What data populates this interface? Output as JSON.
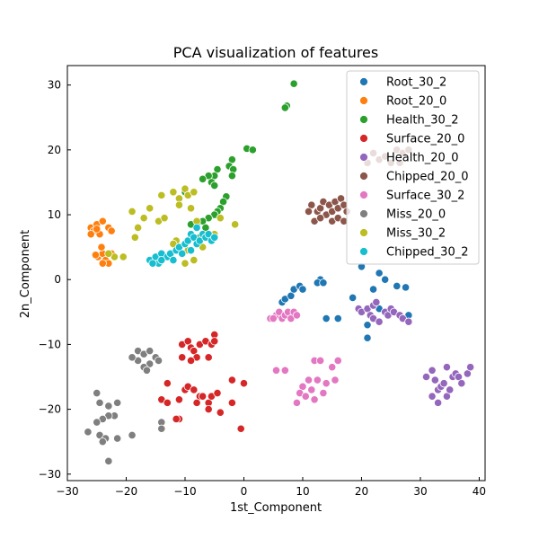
{
  "chart_data": {
    "type": "scatter",
    "title": "PCA visualization of features",
    "xlabel": "1st_Component",
    "ylabel": "2n_Component",
    "xlim": [
      -30,
      41
    ],
    "ylim": [
      -31,
      33
    ],
    "xticks": [
      -30,
      -20,
      -10,
      0,
      10,
      20,
      30,
      40
    ],
    "yticks": [
      -30,
      -20,
      -10,
      0,
      10,
      20,
      30
    ],
    "xtick_labels": [
      "−30",
      "−20",
      "−10",
      "0",
      "10",
      "20",
      "30",
      "40"
    ],
    "ytick_labels": [
      "−30",
      "−20",
      "−10",
      "0",
      "10",
      "20",
      "30"
    ],
    "grid": false,
    "legend": "top-right",
    "series": [
      {
        "name": "Root_30_2",
        "color": "#1f77b4",
        "points": [
          [
            6.5,
            -3.5
          ],
          [
            7,
            -3
          ],
          [
            8,
            -2.5
          ],
          [
            8.5,
            -1.5
          ],
          [
            9.5,
            -1
          ],
          [
            10,
            -1.5
          ],
          [
            13,
            0
          ],
          [
            12.5,
            -0.5
          ],
          [
            13.5,
            -0.5
          ],
          [
            14,
            -6
          ],
          [
            16,
            -6
          ],
          [
            18.5,
            -2.8
          ],
          [
            20,
            2
          ],
          [
            21,
            -7
          ],
          [
            21,
            -9
          ],
          [
            22,
            -1.5
          ],
          [
            23,
            1
          ],
          [
            24,
            0
          ],
          [
            26,
            -1
          ],
          [
            27.5,
            -1.2
          ],
          [
            28,
            -5.5
          ],
          [
            23,
            -4.5
          ]
        ]
      },
      {
        "name": "Root_20_0",
        "color": "#ff7f0e",
        "points": [
          [
            -26,
            8
          ],
          [
            -25.5,
            7.5
          ],
          [
            -25,
            8.5
          ],
          [
            -24.5,
            7
          ],
          [
            -24,
            9
          ],
          [
            -23,
            8
          ],
          [
            -22.5,
            7.5
          ],
          [
            -26,
            7
          ],
          [
            -25,
            7.8
          ],
          [
            -24.8,
            3.5
          ],
          [
            -24,
            4
          ],
          [
            -23.5,
            3
          ],
          [
            -24.2,
            5
          ],
          [
            -25.2,
            3.8
          ],
          [
            -23,
            2.5
          ],
          [
            -24,
            2.5
          ],
          [
            -22.5,
            4
          ]
        ]
      },
      {
        "name": "Health_30_2",
        "color": "#2ca02c",
        "points": [
          [
            8.5,
            30.2
          ],
          [
            7.3,
            26.8
          ],
          [
            7,
            26.5
          ],
          [
            0.5,
            20.2
          ],
          [
            1.5,
            20
          ],
          [
            -2,
            18.5
          ],
          [
            -2.5,
            17.5
          ],
          [
            -1.8,
            17
          ],
          [
            -2,
            16
          ],
          [
            -4.5,
            17
          ],
          [
            -5,
            16
          ],
          [
            -6,
            16
          ],
          [
            -7,
            15.5
          ],
          [
            -5.5,
            15
          ],
          [
            -5,
            14.5
          ],
          [
            -3,
            12.8
          ],
          [
            -3.5,
            12
          ],
          [
            -4,
            11
          ],
          [
            -4.5,
            10.5
          ],
          [
            -5,
            10
          ],
          [
            -6,
            9.5
          ],
          [
            -7,
            9
          ],
          [
            -8,
            8.5
          ],
          [
            -9,
            8.5
          ],
          [
            -6.5,
            8
          ],
          [
            -7.5,
            6.5
          ],
          [
            -9,
            7
          ],
          [
            -10,
            13.5
          ]
        ]
      },
      {
        "name": "Surface_20_0",
        "color": "#d62728",
        "points": [
          [
            -10.5,
            -10
          ],
          [
            -9.5,
            -9.5
          ],
          [
            -9,
            -10.5
          ],
          [
            -8.5,
            -11
          ],
          [
            -7.5,
            -10
          ],
          [
            -6.5,
            -9.5
          ],
          [
            -5.5,
            -10
          ],
          [
            -5,
            -8.5
          ],
          [
            -5,
            -9.5
          ],
          [
            -8,
            -12
          ],
          [
            -9,
            -12.5
          ],
          [
            -10.5,
            -12
          ],
          [
            -6,
            -12
          ],
          [
            -13,
            -16
          ],
          [
            -14,
            -18.5
          ],
          [
            -13,
            -19
          ],
          [
            -11,
            -18.5
          ],
          [
            -10,
            -17
          ],
          [
            -9.5,
            -16.5
          ],
          [
            -8.5,
            -17
          ],
          [
            -7.5,
            -18
          ],
          [
            -8,
            -19
          ],
          [
            -7,
            -18
          ],
          [
            -6,
            -19
          ],
          [
            -5.5,
            -18
          ],
          [
            -4.5,
            -17.5
          ],
          [
            -2,
            -15.5
          ],
          [
            -2,
            -19
          ],
          [
            -4,
            -20.5
          ],
          [
            -6,
            -20
          ],
          [
            0,
            -16
          ],
          [
            -0.5,
            -23
          ],
          [
            -11,
            -21.5
          ],
          [
            -11.5,
            -21.5
          ]
        ]
      },
      {
        "name": "Health_20_0",
        "color": "#9467bd",
        "points": [
          [
            19.5,
            -4.5
          ],
          [
            20,
            -5
          ],
          [
            21,
            -4.5
          ],
          [
            21.5,
            -5.5
          ],
          [
            22,
            -4
          ],
          [
            22.5,
            -3.5
          ],
          [
            22,
            -6
          ],
          [
            23,
            -6.5
          ],
          [
            24,
            -5
          ],
          [
            24.5,
            -5.5
          ],
          [
            25,
            -4.5
          ],
          [
            25.5,
            -5
          ],
          [
            26.5,
            -5.5
          ],
          [
            27,
            -6
          ],
          [
            28,
            -6.5
          ],
          [
            31,
            -15
          ],
          [
            32,
            -14
          ],
          [
            32.5,
            -15.5
          ],
          [
            33,
            -17
          ],
          [
            33.5,
            -16.5
          ],
          [
            34,
            -16
          ],
          [
            34.5,
            -18
          ],
          [
            35,
            -17
          ],
          [
            35.5,
            -15
          ],
          [
            36,
            -14.5
          ],
          [
            36.5,
            -15
          ],
          [
            37,
            -16
          ],
          [
            38,
            -14.5
          ],
          [
            38.5,
            -13.5
          ],
          [
            32,
            -18
          ],
          [
            33,
            -19
          ],
          [
            34.5,
            -13.5
          ]
        ]
      },
      {
        "name": "Chipped_20_0",
        "color": "#8c564b",
        "points": [
          [
            11.5,
            11.5
          ],
          [
            12.5,
            10.5
          ],
          [
            13,
            11
          ],
          [
            13.5,
            12
          ],
          [
            14,
            10
          ],
          [
            14.5,
            11.5
          ],
          [
            15,
            10.5
          ],
          [
            15.5,
            12
          ],
          [
            16,
            11
          ],
          [
            16.5,
            12.5
          ],
          [
            17,
            11.5
          ],
          [
            17.5,
            10.5
          ],
          [
            12,
            9
          ],
          [
            13,
            9.5
          ],
          [
            15,
            9
          ],
          [
            16,
            9.5
          ],
          [
            17,
            9
          ],
          [
            21,
            18
          ],
          [
            22,
            19.5
          ],
          [
            23,
            18.5
          ],
          [
            24,
            19
          ],
          [
            25,
            18
          ],
          [
            26,
            20
          ],
          [
            27,
            19.5
          ],
          [
            28,
            20
          ],
          [
            26.5,
            18
          ],
          [
            11,
            10.5
          ]
        ]
      },
      {
        "name": "Surface_30_2",
        "color": "#e377c2",
        "points": [
          [
            4.5,
            -6
          ],
          [
            5.5,
            -5.5
          ],
          [
            6,
            -5
          ],
          [
            6.5,
            -6
          ],
          [
            7,
            -5.5
          ],
          [
            7.5,
            -5
          ],
          [
            8,
            -6
          ],
          [
            8.5,
            -5
          ],
          [
            9,
            -5.5
          ],
          [
            5,
            -6
          ],
          [
            5.5,
            -14
          ],
          [
            7,
            -14
          ],
          [
            12,
            -12.5
          ],
          [
            13,
            -12.5
          ],
          [
            15,
            -13.5
          ],
          [
            16,
            -12.5
          ],
          [
            11,
            -15.5
          ],
          [
            12.5,
            -15.5
          ],
          [
            14,
            -16
          ],
          [
            15.5,
            -15.5
          ],
          [
            10,
            -16.5
          ],
          [
            11.5,
            -17
          ],
          [
            13.5,
            -17.5
          ],
          [
            9.5,
            -17.5
          ],
          [
            10.5,
            -18
          ],
          [
            12,
            -18.5
          ],
          [
            9,
            -19
          ]
        ]
      },
      {
        "name": "Miss_20_0",
        "color": "#7f7f7f",
        "points": [
          [
            -18,
            -11
          ],
          [
            -17,
            -11.5
          ],
          [
            -16,
            -11
          ],
          [
            -15,
            -12
          ],
          [
            -16,
            -13
          ],
          [
            -17,
            -13.5
          ],
          [
            -18,
            -12.5
          ],
          [
            -19,
            -12
          ],
          [
            -16.5,
            -14
          ],
          [
            -14.5,
            -12.5
          ],
          [
            -25,
            -17.5
          ],
          [
            -24.5,
            -19
          ],
          [
            -23,
            -19.5
          ],
          [
            -22,
            -21
          ],
          [
            -23,
            -21
          ],
          [
            -24,
            -21.5
          ],
          [
            -21.5,
            -19
          ],
          [
            -25,
            -22
          ],
          [
            -26.5,
            -23.5
          ],
          [
            -24.5,
            -24
          ],
          [
            -23.5,
            -24.5
          ],
          [
            -21.5,
            -24.5
          ],
          [
            -24,
            -25
          ],
          [
            -19,
            -24
          ],
          [
            -14,
            -22
          ],
          [
            -14,
            -23
          ],
          [
            -23,
            -28
          ]
        ]
      },
      {
        "name": "Miss_30_2",
        "color": "#bcbd22",
        "points": [
          [
            -19,
            10.5
          ],
          [
            -18,
            8
          ],
          [
            -17,
            9.5
          ],
          [
            -18.5,
            6.5
          ],
          [
            -16,
            11
          ],
          [
            -14.5,
            9
          ],
          [
            -14,
            13
          ],
          [
            -13.5,
            9.5
          ],
          [
            -12,
            13.5
          ],
          [
            -11,
            12.5
          ],
          [
            -10,
            14
          ],
          [
            -9.5,
            13
          ],
          [
            -8.5,
            13.5
          ],
          [
            -11,
            11.5
          ],
          [
            -11.5,
            6
          ],
          [
            -12,
            5.5
          ],
          [
            -9.5,
            4.5
          ],
          [
            -10,
            2.5
          ],
          [
            -8.5,
            3
          ],
          [
            -7,
            5
          ],
          [
            -4,
            9.5
          ],
          [
            -1.5,
            8.5
          ],
          [
            -5,
            7
          ],
          [
            -20.5,
            3.5
          ],
          [
            -22,
            3.5
          ],
          [
            -23,
            4
          ],
          [
            -8,
            9
          ],
          [
            -9,
            11
          ]
        ]
      },
      {
        "name": "Chipped_30_2",
        "color": "#17becf",
        "points": [
          [
            -16,
            3
          ],
          [
            -15,
            3.5
          ],
          [
            -14.5,
            2.5
          ],
          [
            -14,
            4
          ],
          [
            -13,
            3.5
          ],
          [
            -12.5,
            4
          ],
          [
            -11.5,
            4.5
          ],
          [
            -11,
            5
          ],
          [
            -10,
            5.5
          ],
          [
            -9.5,
            6
          ],
          [
            -9,
            7
          ],
          [
            -8.5,
            6.5
          ],
          [
            -8,
            5.5
          ],
          [
            -7.5,
            6
          ],
          [
            -7,
            7
          ],
          [
            -6.5,
            6.5
          ],
          [
            -6,
            7
          ],
          [
            -5.5,
            6
          ],
          [
            -5,
            6.5
          ],
          [
            -9,
            4.5
          ],
          [
            -10.5,
            4
          ],
          [
            -12,
            3
          ],
          [
            -14,
            3
          ],
          [
            -15.5,
            2.5
          ],
          [
            -8,
            8
          ]
        ]
      }
    ]
  }
}
